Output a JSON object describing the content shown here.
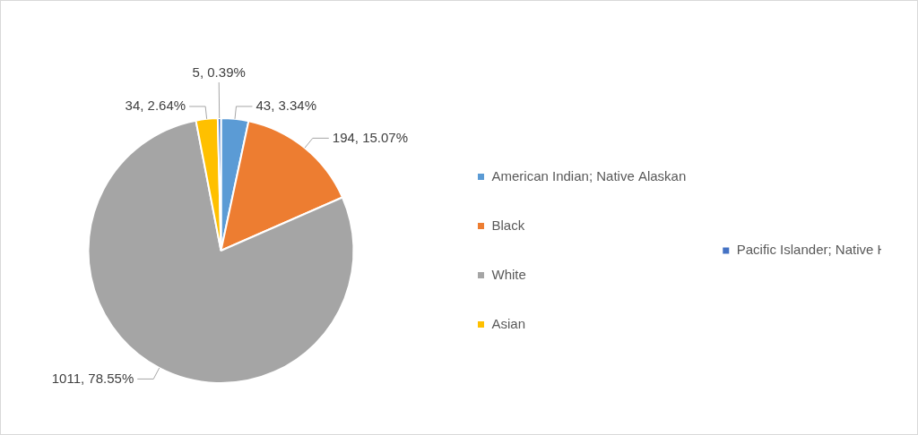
{
  "chart_data": {
    "type": "pie",
    "categories": [
      "American Indian; Native Alaskan",
      "Black",
      "White",
      "Asian",
      "Pacific Islander; Native Hawaiian"
    ],
    "values": [
      43,
      194,
      1011,
      34,
      5
    ],
    "value_labels": [
      "43, 3.34%",
      "194, 15.07%",
      "1011, 78.55%",
      "34, 2.64%",
      "5, 0.39%"
    ],
    "colors": [
      "#5B9BD5",
      "#ED7D31",
      "#A5A5A5",
      "#FFC000",
      "#4472C4"
    ],
    "legend": "right",
    "data_labels": true
  }
}
